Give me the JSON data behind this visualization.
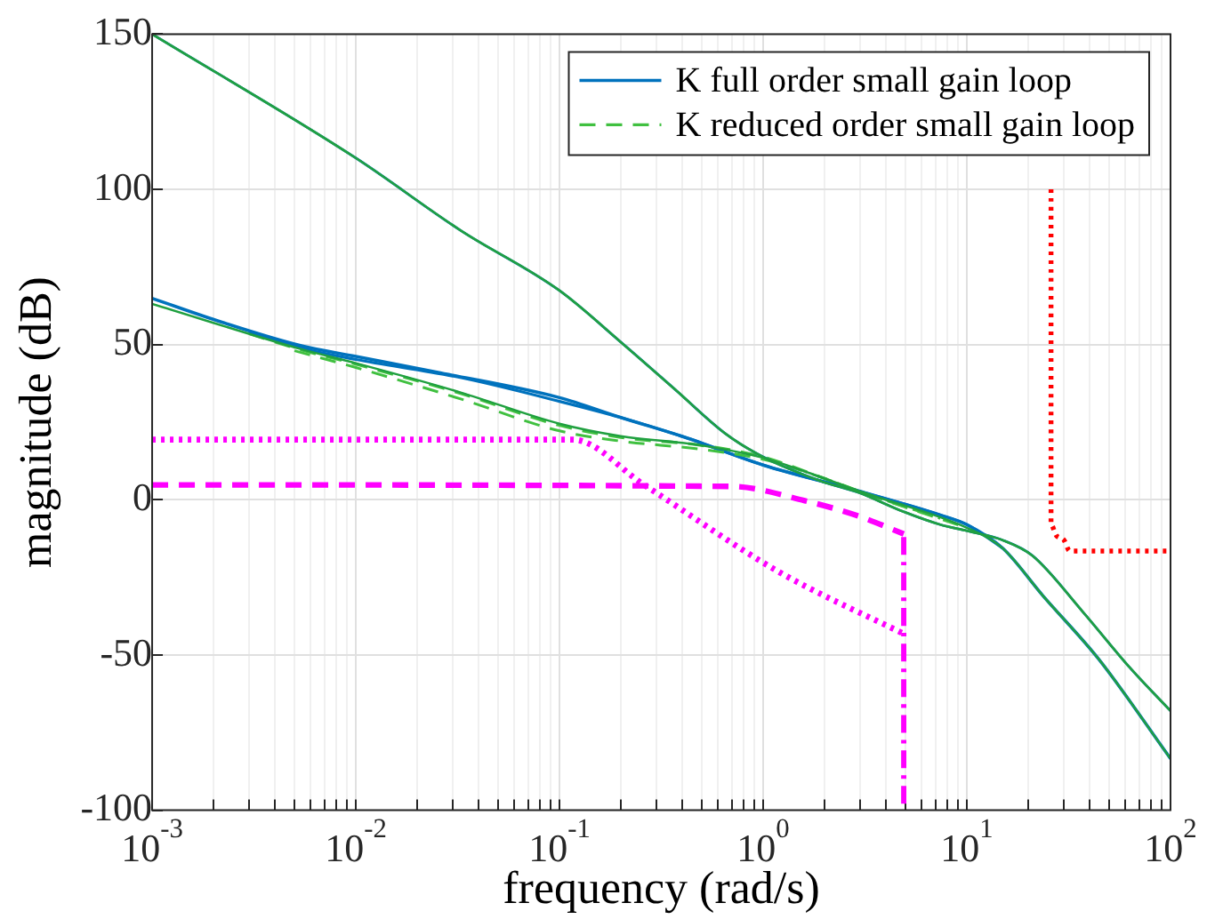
{
  "chart_data": {
    "type": "line",
    "xlabel": "frequency (rad/s)",
    "ylabel": "magnitude (dB)",
    "log": "x",
    "grid": true,
    "legend": "top right",
    "marker": "none",
    "xlim": [
      0.001,
      100
    ],
    "ylim": [
      -100,
      150
    ],
    "xticks": [
      {
        "value": 0.001,
        "label": "10$^{-3}$"
      },
      {
        "value": 0.002,
        "label": null
      },
      {
        "value": 0.003,
        "label": null
      },
      {
        "value": 0.004,
        "label": null
      },
      {
        "value": 0.005,
        "label": null
      },
      {
        "value": 0.006,
        "label": null
      },
      {
        "value": 0.007,
        "label": null
      },
      {
        "value": 0.008,
        "label": null
      },
      {
        "value": 0.009,
        "label": null
      },
      {
        "value": 0.01,
        "label": "10$^{-2}$"
      },
      {
        "value": 0.02,
        "label": null
      },
      {
        "value": 0.03,
        "label": null
      },
      {
        "value": 0.04,
        "label": null
      },
      {
        "value": 0.05,
        "label": null
      },
      {
        "value": 0.06,
        "label": null
      },
      {
        "value": 0.07,
        "label": null
      },
      {
        "value": 0.08,
        "label": null
      },
      {
        "value": 0.09,
        "label": null
      },
      {
        "value": 0.1,
        "label": "10$^{-1}$"
      },
      {
        "value": 0.2,
        "label": null
      },
      {
        "value": 0.3,
        "label": null
      },
      {
        "value": 0.4,
        "label": null
      },
      {
        "value": 0.5,
        "label": null
      },
      {
        "value": 0.6,
        "label": null
      },
      {
        "value": 0.7,
        "label": null
      },
      {
        "value": 0.8,
        "label": null
      },
      {
        "value": 0.9,
        "label": null
      },
      {
        "value": 1,
        "label": "10$^{0}$"
      },
      {
        "value": 2,
        "label": null
      },
      {
        "value": 3,
        "label": null
      },
      {
        "value": 4,
        "label": null
      },
      {
        "value": 5,
        "label": null
      },
      {
        "value": 6,
        "label": null
      },
      {
        "value": 7,
        "label": null
      },
      {
        "value": 8,
        "label": null
      },
      {
        "value": 9,
        "label": null
      },
      {
        "value": 10,
        "label": "10$^{1}$"
      },
      {
        "value": 20,
        "label": null
      },
      {
        "value": 30,
        "label": null
      },
      {
        "value": 40,
        "label": null
      },
      {
        "value": 50,
        "label": null
      },
      {
        "value": 60,
        "label": null
      },
      {
        "value": 70,
        "label": null
      },
      {
        "value": 80,
        "label": null
      },
      {
        "value": 90,
        "label": null
      },
      {
        "value": 100,
        "label": "10$^{2}$"
      }
    ],
    "yticks": [
      -100,
      -50,
      0,
      50,
      100,
      150
    ],
    "series": [
      {
        "name": "K full order small gain loop",
        "color": "#0072bd",
        "line_style": "solid",
        "x": [
          0.001,
          0.0022,
          0.0054,
          0.01,
          0.025,
          0.1,
          0.2,
          0.41,
          1,
          2.95,
          7.4,
          10,
          15,
          23.7,
          44.5,
          100
        ],
        "values": [
          64.9,
          57.2,
          49.6,
          46.2,
          41.1,
          32.9,
          26.5,
          20.2,
          11.2,
          2.8,
          -4.9,
          -8,
          -15.6,
          -31,
          -51.4,
          -83.4
        ]
      },
      {
        "name": "K reduced order small gain loop",
        "color": "#40c040",
        "line_style": "dashed",
        "x": [
          0.003,
          0.0054,
          0.01,
          0.033,
          0.1,
          0.2,
          0.49,
          1,
          1.9,
          2.95,
          10
        ],
        "values": [
          53.5,
          48.3,
          43.7,
          34.2,
          24,
          20.1,
          17.6,
          13.8,
          7.4,
          2.8,
          -9
        ]
      },
      {
        "color": "#0072bd",
        "line_style": "solid",
        "x": [
          0.003,
          0.0054,
          0.01,
          0.033,
          0.1,
          0.2,
          0.41,
          1,
          2.95,
          7.4,
          10,
          15
        ],
        "values": [
          53.9,
          48.8,
          45.2,
          39.3,
          31.7,
          26.5,
          20.2,
          11.2,
          2.8,
          -4.9,
          -8,
          -15.6
        ]
      },
      {
        "color": "#40c040",
        "line_style": "dashed",
        "x": [
          0.005,
          0.01,
          0.033,
          0.1,
          0.2,
          0.49,
          1,
          1.9,
          2.95,
          7.4
        ],
        "values": [
          48,
          42.6,
          32.4,
          22.2,
          18.9,
          16.3,
          13,
          7.4,
          2.8,
          -6
        ]
      },
      {
        "color": "#0072bd",
        "line_style": "solid",
        "x": [
          0.001,
          0.01,
          0.033,
          0.1,
          0.2,
          0.37,
          0.65,
          1,
          1.9,
          2.95,
          4.7,
          7.4,
          10,
          15,
          21,
          37,
          63,
          100
        ],
        "values": [
          150,
          110.1,
          86.6,
          67.4,
          50.8,
          35.5,
          21.4,
          13.8,
          6.1,
          2.3,
          -3.4,
          -8,
          -10,
          -13,
          -18,
          -36,
          -54,
          -68
        ]
      },
      {
        "color": "#20a040",
        "line_style": "solid",
        "x": [
          0.001,
          0.01,
          0.033,
          0.1,
          0.2,
          0.37,
          0.65,
          1,
          1.9,
          2.95,
          4.7,
          7.4,
          10,
          15,
          21,
          37,
          63,
          100
        ],
        "values": [
          150,
          110.1,
          86.6,
          67.4,
          50.8,
          35.5,
          21.4,
          13.8,
          6.1,
          2.3,
          -3.4,
          -8,
          -10,
          -13,
          -18,
          -36,
          -54,
          -68
        ]
      },
      {
        "color": "#20a040",
        "line_style": "solid",
        "x": [
          0.001,
          0.0054,
          0.01,
          0.033,
          0.1,
          0.2,
          0.49,
          1,
          1.9,
          2.95,
          10,
          15,
          23.7,
          44.5,
          100
        ],
        "values": [
          63.1,
          48.5,
          44,
          34.5,
          24.5,
          20.5,
          17.6,
          13.5,
          7.4,
          2.8,
          -9,
          -15.6,
          -31,
          -51.4,
          -83.4
        ]
      },
      {
        "color": "#ff00ff",
        "line_style": "dotted",
        "x": [
          0.001,
          0.116,
          0.26,
          1.2,
          4.9
        ],
        "values": [
          19.4,
          19.4,
          4.8,
          -23.3,
          -43.2
        ]
      },
      {
        "color": "#ff00ff",
        "line_style": "dashed",
        "x": [
          0.001,
          0.7,
          1.6,
          2.98,
          4.9
        ],
        "values": [
          4.8,
          4.3,
          -0.3,
          -5.4,
          -11
        ]
      },
      {
        "color": "#ff00ff",
        "line_style": "dashdot",
        "x": [
          4.9,
          4.9
        ],
        "values": [
          -12,
          -100
        ]
      },
      {
        "color": "#ff0000",
        "line_style": "dotted",
        "x": [
          25.9,
          25.9,
          27.5,
          30,
          32,
          100
        ],
        "values": [
          100,
          -8,
          -11.5,
          -13,
          -16.5,
          -16.5
        ]
      }
    ]
  }
}
